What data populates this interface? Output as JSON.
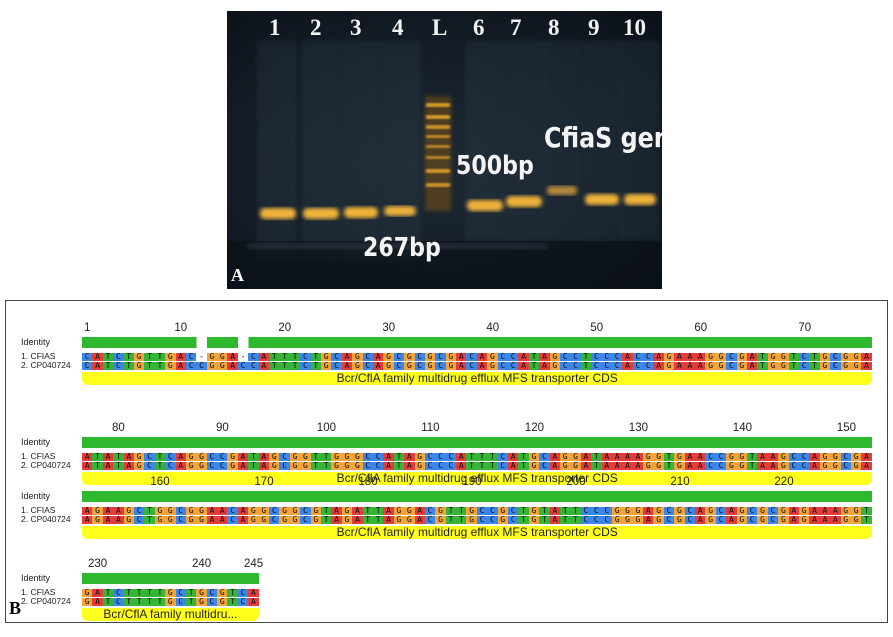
{
  "panel_a": {
    "letter": "A",
    "lane_labels": [
      "1",
      "2",
      "3",
      "4",
      "L",
      "6",
      "7",
      "8",
      "9",
      "10"
    ],
    "labels": {
      "gene": "CfiaS gene",
      "bp500": "500bp",
      "bp267": "267bp"
    }
  },
  "panel_b": {
    "letter": "B",
    "row_labels": {
      "identity": "Identity",
      "seq1": "1. CFIAS",
      "seq2": "2. CP040724"
    },
    "colors": {
      "A": "#e43b3b",
      "C": "#3b86e8",
      "G": "#f2a33a",
      "T": "#36b436",
      "gap": "#ffffff",
      "identity": "#2db82d",
      "annotation": "#ffff1e"
    },
    "blocks": [
      {
        "ticks": [
          "1",
          "10",
          "20",
          "30",
          "40",
          "50",
          "60",
          "70"
        ],
        "seq1": "CATCTGTTGAC-GGA-CATTTCTGCAGCAGCGCGCGACAGCCATAGCCTCCCACCAGAAAGGCGATGGTCTGCGGA",
        "seq2": "CATCTGTTGACCGGACCATTTCTGCAGCAGCGCGCGACAGCCATAGCCTCCCACCAGAAAGGCGATGGTCTGCGGA",
        "annotation": "Bcr/CflA family multidrug efflux MFS transporter CDS"
      },
      {
        "ticks": [
          "80",
          "90",
          "100",
          "110",
          "120",
          "130",
          "140",
          "150"
        ],
        "seq1": "ATATAGCTCAGGCCGATAGCGGTTGGGCCATAGCCCATTTCATGCAGGATAAAAGGTGAACCGGTAAGCCAGGCGA",
        "seq2": "ATATAGCTCAGGCCGATAGCGGTTGGGCCATAGCCCATTTCATGCAGGATAAAAGGTGAACCGGTAAGCCAGGCGA",
        "annotation": "Bcr/CflA family multidrug efflux MFS transporter CDS"
      },
      {
        "ticks": [
          "160",
          "170",
          "180",
          "190",
          "200",
          "210",
          "220"
        ],
        "seq1": "AGAAGCTGGCGGAACAGGCGGCGTAGATTAGGACGTTGCCGCTGTATTCCCGGGAGCGCAGCAGCGCGAGAAAGGT",
        "seq2": "AGAAGCTGGCGGAACAGGCGGCGTAGATTAGGACGTTGCCGCTGTATTCCCGGGAGCGCAGCAGCGCGAGAAAGGT",
        "annotation": "Bcr/CflA family multidrug efflux MFS transporter CDS"
      },
      {
        "ticks": [
          "230",
          "240",
          "245"
        ],
        "seq1": "GATCTTTTGCTGCGTCA",
        "seq2": "GATCTTTTGCTGCGTCA",
        "annotation": "Bcr/CflA family multidru..."
      }
    ]
  }
}
